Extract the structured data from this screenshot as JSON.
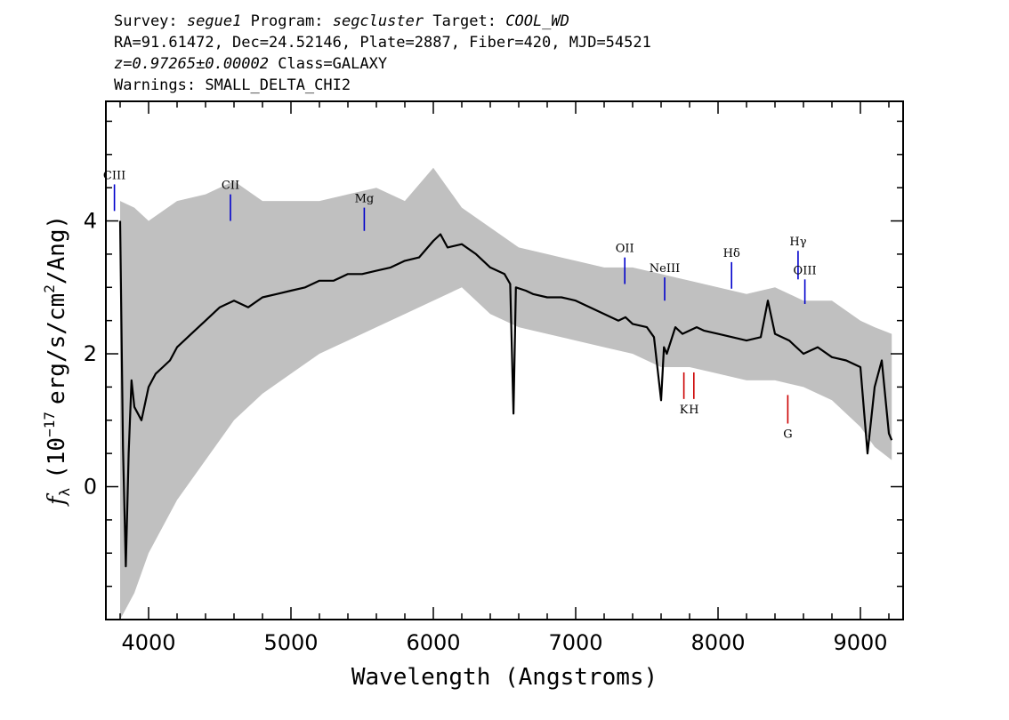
{
  "header": {
    "survey_label": "Survey:",
    "survey": "segue1",
    "program_label": "Program:",
    "program": "segcluster",
    "target_label": "Target:",
    "target": "COOL_WD",
    "line2": "RA=91.61472, Dec=24.52146, Plate=2887, Fiber=420, MJD=54521",
    "redshift": "z=0.97265±0.00002",
    "class": "Class=GALAXY",
    "warnings": "Warnings: SMALL_DELTA_CHI2"
  },
  "colors": {
    "flux": "#000000",
    "error_band": "#c0c0c0",
    "emission_marker": "#0000cc",
    "absorption_marker": "#cc0000"
  },
  "chart_data": {
    "type": "line",
    "xlabel": "Wavelength (Angstroms)",
    "ylabel_parts": {
      "f": "f",
      "lambda": "λ",
      "prefix": "(10",
      "exp": "−17",
      "unit": "erg/s/cm",
      "sq": "2",
      "end": "/Ang)"
    },
    "xlim": [
      3700,
      9300
    ],
    "ylim": [
      -2.0,
      5.8
    ],
    "x_ticks": [
      4000,
      5000,
      6000,
      7000,
      8000,
      9000
    ],
    "x_tick_labels": [
      "4000",
      "5000",
      "6000",
      "7000",
      "8000",
      "9000"
    ],
    "y_ticks": [
      0,
      2,
      4
    ],
    "y_tick_labels": [
      "0",
      "2",
      "4"
    ],
    "grid": false,
    "series": [
      {
        "role": "flux",
        "x": [
          3800,
          3820,
          3840,
          3860,
          3880,
          3900,
          3950,
          4000,
          4050,
          4100,
          4150,
          4200,
          4300,
          4400,
          4500,
          4600,
          4700,
          4800,
          4900,
          5000,
          5100,
          5200,
          5300,
          5400,
          5500,
          5600,
          5700,
          5800,
          5900,
          6000,
          6050,
          6100,
          6200,
          6300,
          6400,
          6500,
          6540,
          6563,
          6580,
          6650,
          6700,
          6800,
          6900,
          7000,
          7100,
          7200,
          7300,
          7350,
          7400,
          7500,
          7550,
          7600,
          7620,
          7640,
          7700,
          7750,
          7800,
          7850,
          7900,
          8000,
          8100,
          8200,
          8300,
          8350,
          8400,
          8500,
          8600,
          8700,
          8800,
          8900,
          9000,
          9050,
          9100,
          9150,
          9200,
          9220
        ],
        "y": [
          4.0,
          0.6,
          -1.2,
          0.5,
          1.6,
          1.2,
          1.0,
          1.5,
          1.7,
          1.8,
          1.9,
          2.1,
          2.3,
          2.5,
          2.7,
          2.8,
          2.7,
          2.85,
          2.9,
          2.95,
          3.0,
          3.1,
          3.1,
          3.2,
          3.2,
          3.25,
          3.3,
          3.4,
          3.45,
          3.7,
          3.8,
          3.6,
          3.65,
          3.5,
          3.3,
          3.2,
          3.05,
          1.1,
          3.0,
          2.95,
          2.9,
          2.85,
          2.85,
          2.8,
          2.7,
          2.6,
          2.5,
          2.55,
          2.45,
          2.4,
          2.25,
          1.3,
          2.1,
          2.0,
          2.4,
          2.3,
          2.35,
          2.4,
          2.35,
          2.3,
          2.25,
          2.2,
          2.25,
          2.8,
          2.3,
          2.2,
          2.0,
          2.1,
          1.95,
          1.9,
          1.8,
          0.5,
          1.5,
          1.9,
          0.8,
          0.7
        ]
      },
      {
        "role": "error_band",
        "x": [
          3800,
          3900,
          4000,
          4200,
          4400,
          4600,
          4800,
          5000,
          5200,
          5400,
          5600,
          5800,
          6000,
          6200,
          6400,
          6600,
          6800,
          7000,
          7200,
          7400,
          7600,
          7800,
          8000,
          8200,
          8400,
          8600,
          8800,
          9000,
          9100,
          9220
        ],
        "y_low": [
          -2.0,
          -1.6,
          -1.0,
          -0.2,
          0.4,
          1.0,
          1.4,
          1.7,
          2.0,
          2.2,
          2.4,
          2.6,
          2.8,
          3.0,
          2.6,
          2.4,
          2.3,
          2.2,
          2.1,
          2.0,
          1.8,
          1.8,
          1.7,
          1.6,
          1.6,
          1.5,
          1.3,
          0.9,
          0.6,
          0.4
        ],
        "y_high": [
          4.3,
          4.2,
          4.0,
          4.3,
          4.4,
          4.6,
          4.3,
          4.3,
          4.3,
          4.4,
          4.5,
          4.3,
          4.8,
          4.2,
          3.9,
          3.6,
          3.5,
          3.4,
          3.3,
          3.3,
          3.2,
          3.1,
          3.0,
          2.9,
          3.0,
          2.8,
          2.8,
          2.5,
          2.4,
          2.3
        ]
      }
    ],
    "line_markers": [
      {
        "label": "CIII",
        "x": 3760,
        "y_bottom": 4.15,
        "y_top": 4.55,
        "kind": "emission"
      },
      {
        "label": "CII",
        "x": 4575,
        "y_bottom": 4.0,
        "y_top": 4.4,
        "kind": "emission"
      },
      {
        "label": "Mg",
        "x": 5515,
        "y_bottom": 3.85,
        "y_top": 4.2,
        "kind": "emission"
      },
      {
        "label": "OII",
        "x": 7345,
        "y_bottom": 3.05,
        "y_top": 3.45,
        "kind": "emission"
      },
      {
        "label": "NeIII",
        "x": 7625,
        "y_bottom": 2.8,
        "y_top": 3.15,
        "kind": "emission"
      },
      {
        "label": "Hδ",
        "x": 8095,
        "y_bottom": 2.98,
        "y_top": 3.38,
        "kind": "emission"
      },
      {
        "label": "Hγ",
        "x": 8562,
        "y_bottom": 3.12,
        "y_top": 3.55,
        "kind": "emission"
      },
      {
        "label": "OIII",
        "x": 8610,
        "y_bottom": 2.75,
        "y_top": 3.12,
        "kind": "emission"
      },
      {
        "label": "K",
        "x": 7760,
        "y_bottom": 1.32,
        "y_top": 1.72,
        "kind": "absorption"
      },
      {
        "label": "H",
        "x": 7830,
        "y_bottom": 1.32,
        "y_top": 1.72,
        "kind": "absorption"
      },
      {
        "label": "G",
        "x": 8490,
        "y_bottom": 0.95,
        "y_top": 1.38,
        "kind": "absorption"
      }
    ]
  }
}
